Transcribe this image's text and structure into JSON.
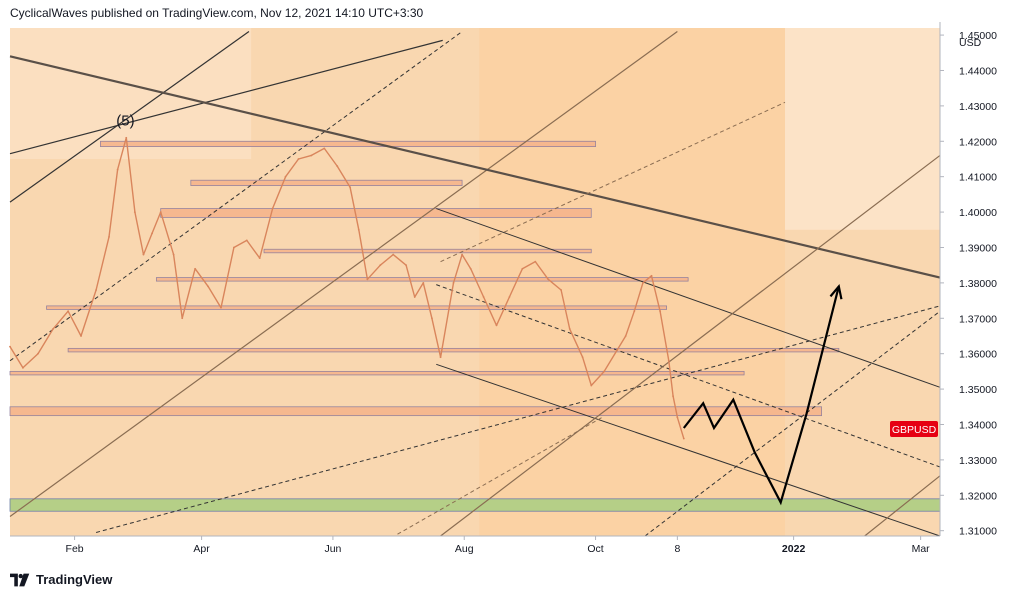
{
  "header": {
    "text": "CyclicalWaves published on TradingView.com, Nov 12, 2021 14:10 UTC+3:30"
  },
  "footer": {
    "brand": "TradingView",
    "logo_icon": "tradingview-logo-icon"
  },
  "colors": {
    "plot_background": "#f9d7b0",
    "price_line": "#d9855c",
    "zone": "#f6b58c",
    "green_zone": "#b5cf87",
    "symbol_badge": "#e60012",
    "projection": "#000000"
  },
  "chart_data": {
    "type": "line",
    "symbol": "GBPUSD",
    "currency": "USD",
    "wave_label": "(5)",
    "y_ticks": [
      "1.31000",
      "1.32000",
      "1.33000",
      "1.34000",
      "1.35000",
      "1.36000",
      "1.37000",
      "1.38000",
      "1.39000",
      "1.40000",
      "1.41000",
      "1.42000",
      "1.43000",
      "1.44000",
      "1.45000"
    ],
    "ylim": [
      1.3085,
      1.452
    ],
    "x_ticks": [
      {
        "label": "Feb",
        "t": 30
      },
      {
        "label": "Apr",
        "t": 89
      },
      {
        "label": "Jun",
        "t": 150
      },
      {
        "label": "Aug",
        "t": 211
      },
      {
        "label": "Oct",
        "t": 272
      },
      {
        "label": "8",
        "t": 310
      },
      {
        "label": "2022",
        "t": 364
      },
      {
        "label": "Mar",
        "t": 423
      }
    ],
    "xlim": [
      0,
      432
    ],
    "grid": false,
    "price_series": {
      "name": "GBPUSD",
      "points": [
        [
          0,
          1.362
        ],
        [
          6,
          1.356
        ],
        [
          13,
          1.36
        ],
        [
          20,
          1.367
        ],
        [
          27,
          1.372
        ],
        [
          33,
          1.365
        ],
        [
          40,
          1.378
        ],
        [
          46,
          1.393
        ],
        [
          50,
          1.412
        ],
        [
          54,
          1.421
        ],
        [
          58,
          1.4
        ],
        [
          62,
          1.388
        ],
        [
          66,
          1.394
        ],
        [
          70,
          1.4
        ],
        [
          76,
          1.388
        ],
        [
          80,
          1.37
        ],
        [
          86,
          1.384
        ],
        [
          92,
          1.379
        ],
        [
          98,
          1.373
        ],
        [
          104,
          1.39
        ],
        [
          110,
          1.392
        ],
        [
          116,
          1.387
        ],
        [
          122,
          1.401
        ],
        [
          128,
          1.41
        ],
        [
          134,
          1.415
        ],
        [
          140,
          1.416
        ],
        [
          146,
          1.418
        ],
        [
          152,
          1.413
        ],
        [
          158,
          1.407
        ],
        [
          162,
          1.395
        ],
        [
          166,
          1.381
        ],
        [
          172,
          1.385
        ],
        [
          178,
          1.388
        ],
        [
          184,
          1.385
        ],
        [
          188,
          1.376
        ],
        [
          192,
          1.38
        ],
        [
          196,
          1.37
        ],
        [
          200,
          1.359
        ],
        [
          206,
          1.38
        ],
        [
          210,
          1.388
        ],
        [
          214,
          1.384
        ],
        [
          220,
          1.376
        ],
        [
          226,
          1.368
        ],
        [
          232,
          1.376
        ],
        [
          238,
          1.384
        ],
        [
          244,
          1.386
        ],
        [
          250,
          1.381
        ],
        [
          256,
          1.378
        ],
        [
          260,
          1.367
        ],
        [
          266,
          1.359
        ],
        [
          270,
          1.351
        ],
        [
          276,
          1.355
        ],
        [
          282,
          1.361
        ],
        [
          286,
          1.365
        ],
        [
          290,
          1.372
        ],
        [
          294,
          1.38
        ],
        [
          298,
          1.382
        ],
        [
          302,
          1.372
        ],
        [
          306,
          1.358
        ],
        [
          308,
          1.348
        ],
        [
          310,
          1.342
        ],
        [
          313,
          1.336
        ]
      ]
    },
    "projection_path": [
      [
        313,
        1.339
      ],
      [
        322,
        1.346
      ],
      [
        327,
        1.339
      ],
      [
        336,
        1.347
      ],
      [
        346,
        1.332
      ],
      [
        358,
        1.318
      ],
      [
        370,
        1.343
      ],
      [
        385,
        1.379
      ]
    ],
    "horizontal_zones": [
      {
        "y0": 1.4185,
        "y1": 1.42,
        "t0": 42,
        "t1": 272
      },
      {
        "y0": 1.4075,
        "y1": 1.409,
        "t0": 84,
        "t1": 210
      },
      {
        "y0": 1.3985,
        "y1": 1.401,
        "t0": 70,
        "t1": 270
      },
      {
        "y0": 1.3885,
        "y1": 1.3895,
        "t0": 118,
        "t1": 270
      },
      {
        "y0": 1.3805,
        "y1": 1.3815,
        "t0": 68,
        "t1": 315
      },
      {
        "y0": 1.3725,
        "y1": 1.3735,
        "t0": 17,
        "t1": 305
      },
      {
        "y0": 1.3605,
        "y1": 1.3615,
        "t0": 27,
        "t1": 385
      },
      {
        "y0": 1.354,
        "y1": 1.355,
        "t0": 0,
        "t1": 341
      },
      {
        "y0": 1.3425,
        "y1": 1.345,
        "t0": 0,
        "t1": 377
      }
    ],
    "green_zone": {
      "y0": 1.3155,
      "y1": 1.319
    },
    "trend_lines": [
      {
        "style": "solid",
        "color": "#333333",
        "width": 1.2,
        "p": [
          [
            0,
            1.4165
          ],
          [
            201,
            1.4485
          ]
        ]
      },
      {
        "style": "solid",
        "color": "#333333",
        "width": 1.2,
        "p": [
          [
            0,
            1.4028
          ],
          [
            111,
            1.451
          ]
        ]
      },
      {
        "style": "dashed",
        "color": "#333333",
        "width": 1.0,
        "p": [
          [
            0,
            1.358
          ],
          [
            210,
            1.451
          ]
        ]
      },
      {
        "style": "solid",
        "color": "#8a6d52",
        "width": 1.2,
        "p": [
          [
            0,
            1.314
          ],
          [
            310,
            1.451
          ]
        ]
      },
      {
        "style": "dashed",
        "color": "#333333",
        "width": 1.0,
        "p": [
          [
            40,
            1.3095
          ],
          [
            432,
            1.3735
          ]
        ]
      },
      {
        "style": "solid",
        "color": "#5a5048",
        "width": 2.2,
        "p": [
          [
            0,
            1.444
          ],
          [
            432,
            1.3815
          ]
        ]
      },
      {
        "style": "solid",
        "color": "#333333",
        "width": 1.0,
        "p": [
          [
            198,
            1.401
          ],
          [
            432,
            1.3505
          ]
        ]
      },
      {
        "style": "dashed",
        "color": "#333333",
        "width": 1.0,
        "p": [
          [
            198,
            1.3795
          ],
          [
            432,
            1.328
          ]
        ]
      },
      {
        "style": "solid",
        "color": "#333333",
        "width": 1.0,
        "p": [
          [
            198,
            1.357
          ],
          [
            432,
            1.3085
          ]
        ]
      },
      {
        "style": "solid",
        "color": "#8a6d52",
        "width": 1.2,
        "p": [
          [
            200,
            1.3085
          ],
          [
            432,
            1.416
          ]
        ]
      },
      {
        "style": "dashed",
        "color": "#333333",
        "width": 1.0,
        "p": [
          [
            295,
            1.3085
          ],
          [
            432,
            1.372
          ]
        ]
      },
      {
        "style": "dashed",
        "color": "#8a6d52",
        "width": 1.0,
        "p": [
          [
            200,
            1.386
          ],
          [
            360,
            1.431
          ]
        ]
      },
      {
        "style": "solid",
        "color": "#8a6d52",
        "width": 1.2,
        "p": [
          [
            397,
            1.3085
          ],
          [
            432,
            1.3255
          ]
        ]
      },
      {
        "style": "dashed",
        "color": "#8a6d52",
        "width": 1.0,
        "p": [
          [
            180,
            1.309
          ],
          [
            275,
            1.342
          ]
        ]
      }
    ]
  }
}
